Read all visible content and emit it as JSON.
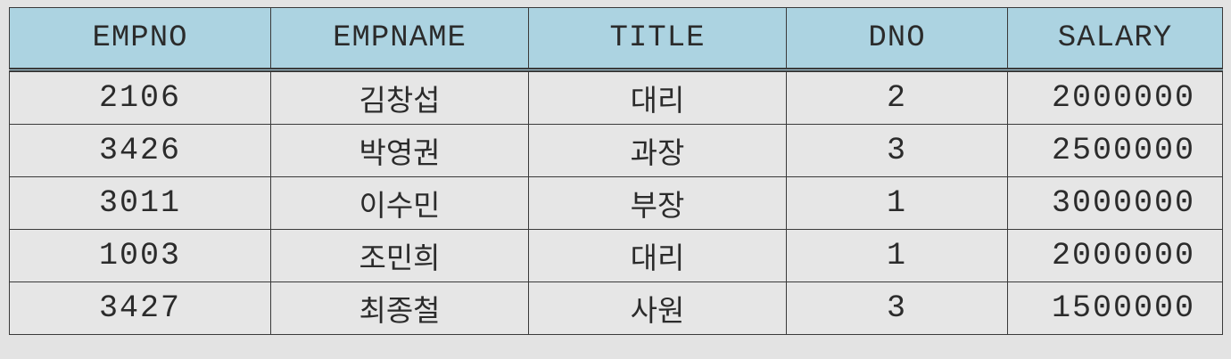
{
  "table": {
    "headers": [
      "EMPNO",
      "EMPNAME",
      "TITLE",
      "DNO",
      "SALARY"
    ],
    "rows": [
      [
        "2106",
        "김창섭",
        "대리",
        "2",
        "2000000"
      ],
      [
        "3426",
        "박영권",
        "과장",
        "3",
        "2500000"
      ],
      [
        "3011",
        "이수민",
        "부장",
        "1",
        "3000000"
      ],
      [
        "1003",
        "조민희",
        "대리",
        "1",
        "2000000"
      ],
      [
        "3427",
        "최종철",
        "사원",
        "3",
        "1500000"
      ]
    ]
  },
  "colors": {
    "header_background": "#acd3e1",
    "cell_background": "#e6e6e6",
    "border": "#3a3a3a",
    "page_background": "#e3e3e3"
  }
}
